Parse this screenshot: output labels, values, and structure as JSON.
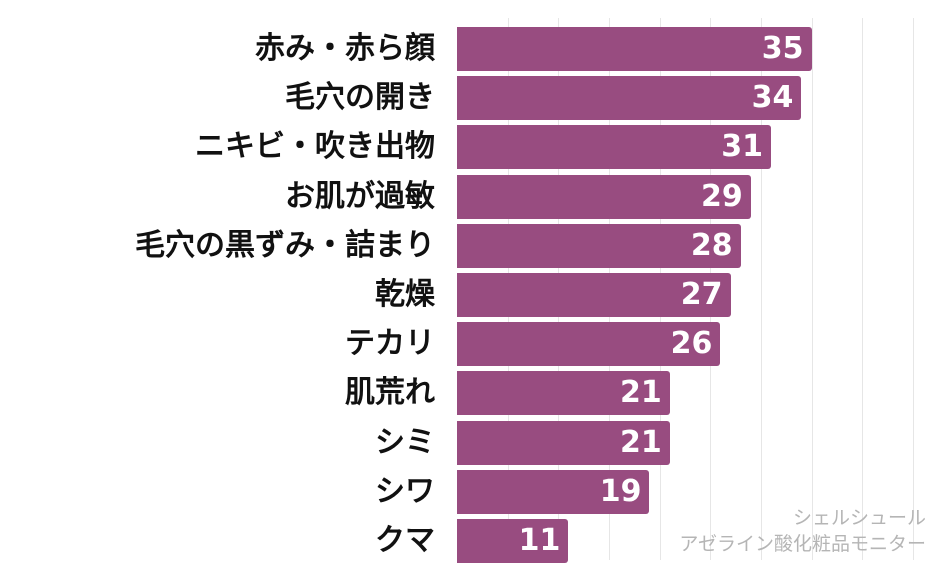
{
  "chart_data": {
    "type": "bar",
    "orientation": "horizontal",
    "title": "",
    "xlabel": "",
    "ylabel": "",
    "categories": [
      "赤み・赤ら顔",
      "毛穴の開き",
      "ニキビ・吹き出物",
      "お肌が過敏",
      "毛穴の黒ずみ・詰まり",
      "乾燥",
      "テカリ",
      "肌荒れ",
      "シミ",
      "シワ",
      "クマ"
    ],
    "values": [
      35,
      34,
      31,
      29,
      28,
      27,
      26,
      21,
      21,
      19,
      11
    ],
    "xlim": [
      0,
      45
    ],
    "grid": true,
    "grid_step": 5,
    "data_labels": true,
    "bar_color": "#984c80"
  },
  "credit": {
    "line1": "シェルシュール",
    "line2": "アゼライン酸化粧品モニター"
  }
}
